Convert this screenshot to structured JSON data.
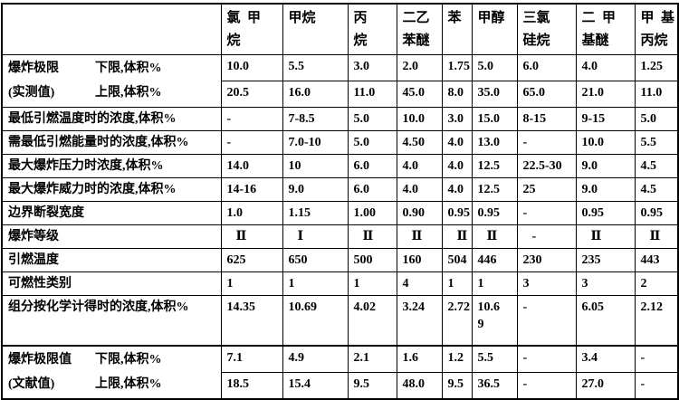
{
  "table": {
    "header": {
      "corner": "",
      "columns": [
        "氯  甲\n烷",
        "甲烷",
        "丙\n烷",
        "二乙\n苯醚",
        "苯",
        "甲醇",
        "三氯\n硅烷",
        "二  甲\n基醚",
        "甲  基\n丙烷"
      ]
    },
    "groups": [
      {
        "kind": "pair",
        "labels": [
          [
            "爆炸极限",
            "下限,体积%"
          ],
          [
            "(实测值)",
            "上限,体积%"
          ]
        ],
        "rows": [
          [
            "10.0",
            "5.5",
            "3.0",
            "2.0",
            "1.75",
            "5.0",
            "6.0",
            "4.0",
            "1.25"
          ],
          [
            "20.5",
            "16.0",
            "11.0",
            "45.0",
            "8.0",
            "35.0",
            "65.0",
            "21.0",
            "11.0"
          ]
        ]
      },
      {
        "kind": "single",
        "label": "最低引燃温度时的浓度,体积%",
        "values": [
          "-",
          "7-8.5",
          "5.0",
          "10.0",
          "3.0",
          "15.0",
          "8-15",
          "9-15",
          "5.0"
        ]
      },
      {
        "kind": "single",
        "label": "需最低引燃能量时的浓度,体积%",
        "values": [
          "-",
          "7.0-10",
          "5.0",
          "4.50",
          "4.0",
          "13.0",
          "-",
          "10.0",
          "5.5"
        ]
      },
      {
        "kind": "single",
        "label": "最大爆炸压力时浓度,体积%",
        "values": [
          "14.0",
          "10",
          "6.0",
          "4.0",
          "4.0",
          "12.5",
          "22.5-30",
          "9.0",
          "4.5"
        ]
      },
      {
        "kind": "single",
        "label": "最大爆炸威力时的浓度,体积%",
        "values": [
          "14-16",
          "9.0",
          "6.0",
          "4.0",
          "4.0",
          "12.5",
          "25",
          "9.0",
          "4.5"
        ]
      },
      {
        "kind": "single",
        "label": "边界断裂宽度",
        "values": [
          "1.0",
          "1.15",
          "1.00",
          "0.90",
          "0.95",
          "0.95",
          "-",
          "0.95",
          "0.95"
        ]
      },
      {
        "kind": "single",
        "label": "爆炸等级",
        "indent": true,
        "values": [
          "Ⅱ",
          "Ⅰ",
          "Ⅱ",
          "Ⅱ",
          "Ⅱ",
          "Ⅱ",
          "-",
          "Ⅱ",
          "Ⅱ"
        ]
      },
      {
        "kind": "single",
        "label": "引燃温度",
        "values": [
          "625",
          "650",
          "500",
          "160",
          "504",
          "446",
          "230",
          "235",
          "443"
        ]
      },
      {
        "kind": "single",
        "label": "可燃性类别",
        "values": [
          "1",
          "1",
          "1",
          "4",
          "1",
          "1",
          "3",
          "3",
          "2"
        ]
      },
      {
        "kind": "single",
        "label": "组分按化学计得时的浓度,体积%",
        "values": [
          "14.35",
          "10.69",
          "4.02",
          "3.24",
          "2.72",
          "10.6\n9",
          "-",
          "6.05",
          "2.12"
        ]
      },
      {
        "kind": "pair",
        "thick_top": true,
        "labels": [
          [
            "爆炸极限值",
            "下限,体积%"
          ],
          [
            "(文献值)",
            "上限,体积%"
          ]
        ],
        "rows": [
          [
            "7.1",
            "4.9",
            "2.1",
            "1.6",
            "1.2",
            "5.5",
            "-",
            "3.4",
            "-"
          ],
          [
            "18.5",
            "15.4",
            "9.5",
            "48.0",
            "9.5",
            "36.5",
            "-",
            "27.0",
            "-"
          ]
        ]
      }
    ]
  }
}
